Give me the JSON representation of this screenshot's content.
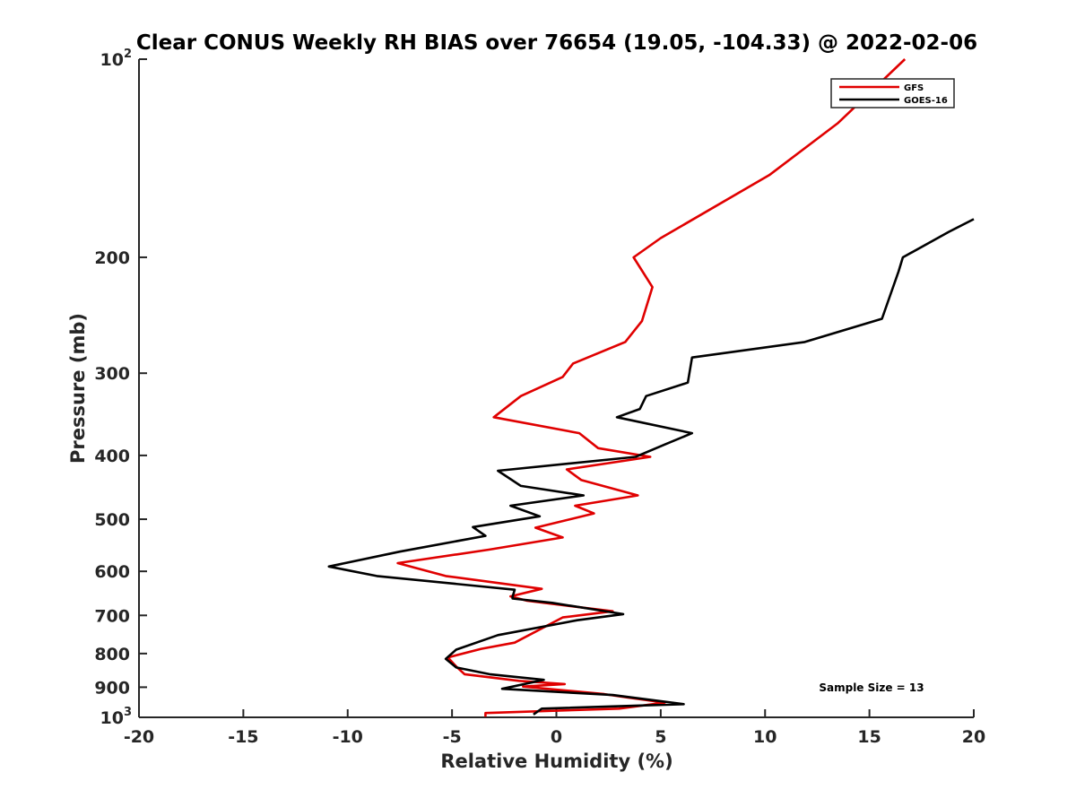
{
  "chart_data": {
    "type": "line",
    "title": "Clear CONUS Weekly RH BIAS over 76654 (19.05, -104.33) @ 2022-02-06",
    "xlabel": "Relative Humidity (%)",
    "ylabel": "Pressure (mb)",
    "xlim": [
      -20,
      20
    ],
    "ylim": [
      100,
      1000
    ],
    "yscale": "log",
    "y_reversed": true,
    "x_ticks": [
      "-20",
      "-15",
      "-10",
      "-5",
      "0",
      "5",
      "10",
      "15",
      "20"
    ],
    "y_ticks": [
      {
        "value": 100,
        "base": "10",
        "exp": "2"
      },
      {
        "value": 200,
        "label": "200"
      },
      {
        "value": 300,
        "label": "300"
      },
      {
        "value": 400,
        "label": "400"
      },
      {
        "value": 500,
        "label": "500"
      },
      {
        "value": 600,
        "label": "600"
      },
      {
        "value": 700,
        "label": "700"
      },
      {
        "value": 800,
        "label": "800"
      },
      {
        "value": 900,
        "label": "900"
      },
      {
        "value": 1000,
        "base": "10",
        "exp": "3"
      }
    ],
    "legend_position": "top-right",
    "annotation": "Sample Size = 13",
    "series": [
      {
        "name": "GFS",
        "color": "#e00000",
        "points": [
          [
            16.7,
            100
          ],
          [
            13.5,
            125
          ],
          [
            10.2,
            150
          ],
          [
            5.0,
            187
          ],
          [
            3.7,
            200
          ],
          [
            4.6,
            222
          ],
          [
            4.1,
            250
          ],
          [
            3.3,
            269
          ],
          [
            0.8,
            290
          ],
          [
            0.3,
            304
          ],
          [
            -1.7,
            325
          ],
          [
            -3.0,
            350
          ],
          [
            1.1,
            370
          ],
          [
            2.0,
            390
          ],
          [
            4.5,
            402
          ],
          [
            0.5,
            420
          ],
          [
            1.2,
            436
          ],
          [
            3.9,
            460
          ],
          [
            0.9,
            477
          ],
          [
            1.8,
            490
          ],
          [
            -1.0,
            515
          ],
          [
            0.3,
            533
          ],
          [
            -3.2,
            556
          ],
          [
            -7.6,
            583
          ],
          [
            -5.3,
            610
          ],
          [
            -0.7,
            638
          ],
          [
            -2.2,
            655
          ],
          [
            -1.4,
            665
          ],
          [
            2.7,
            690
          ],
          [
            0.3,
            705
          ],
          [
            -2.0,
            770
          ],
          [
            -3.6,
            787
          ],
          [
            -5.2,
            811
          ],
          [
            -4.8,
            837
          ],
          [
            -4.4,
            860
          ],
          [
            -1.8,
            880
          ],
          [
            0.4,
            890
          ],
          [
            -1.6,
            898
          ],
          [
            2.3,
            922
          ],
          [
            3.4,
            933
          ],
          [
            5.2,
            950
          ],
          [
            3.0,
            970
          ],
          [
            -3.4,
            985
          ],
          [
            -3.4,
            998
          ]
        ]
      },
      {
        "name": "GOES-16",
        "color": "#000000",
        "points": [
          [
            20.0,
            175
          ],
          [
            18.8,
            183
          ],
          [
            16.6,
            200
          ],
          [
            16.4,
            210
          ],
          [
            15.6,
            248
          ],
          [
            11.9,
            269
          ],
          [
            6.5,
            284
          ],
          [
            6.3,
            310
          ],
          [
            4.3,
            325
          ],
          [
            4.0,
            340
          ],
          [
            2.9,
            350
          ],
          [
            6.5,
            370
          ],
          [
            5.2,
            385
          ],
          [
            3.8,
            402
          ],
          [
            -2.8,
            422
          ],
          [
            -1.7,
            445
          ],
          [
            1.3,
            460
          ],
          [
            -2.2,
            477
          ],
          [
            -0.8,
            495
          ],
          [
            -4.0,
            514
          ],
          [
            -3.4,
            530
          ],
          [
            -7.5,
            560
          ],
          [
            -10.9,
            590
          ],
          [
            -8.6,
            610
          ],
          [
            -2.0,
            640
          ],
          [
            -2.1,
            656
          ],
          [
            -2.1,
            660
          ],
          [
            -0.2,
            670
          ],
          [
            3.2,
            697
          ],
          [
            1.0,
            712
          ],
          [
            -2.8,
            750
          ],
          [
            -4.8,
            789
          ],
          [
            -5.3,
            815
          ],
          [
            -4.8,
            840
          ],
          [
            -3.2,
            860
          ],
          [
            -0.6,
            877
          ],
          [
            -2.6,
            905
          ],
          [
            2.7,
            925
          ],
          [
            6.1,
            955
          ],
          [
            -0.7,
            970
          ],
          [
            -1.1,
            990
          ]
        ]
      }
    ]
  }
}
